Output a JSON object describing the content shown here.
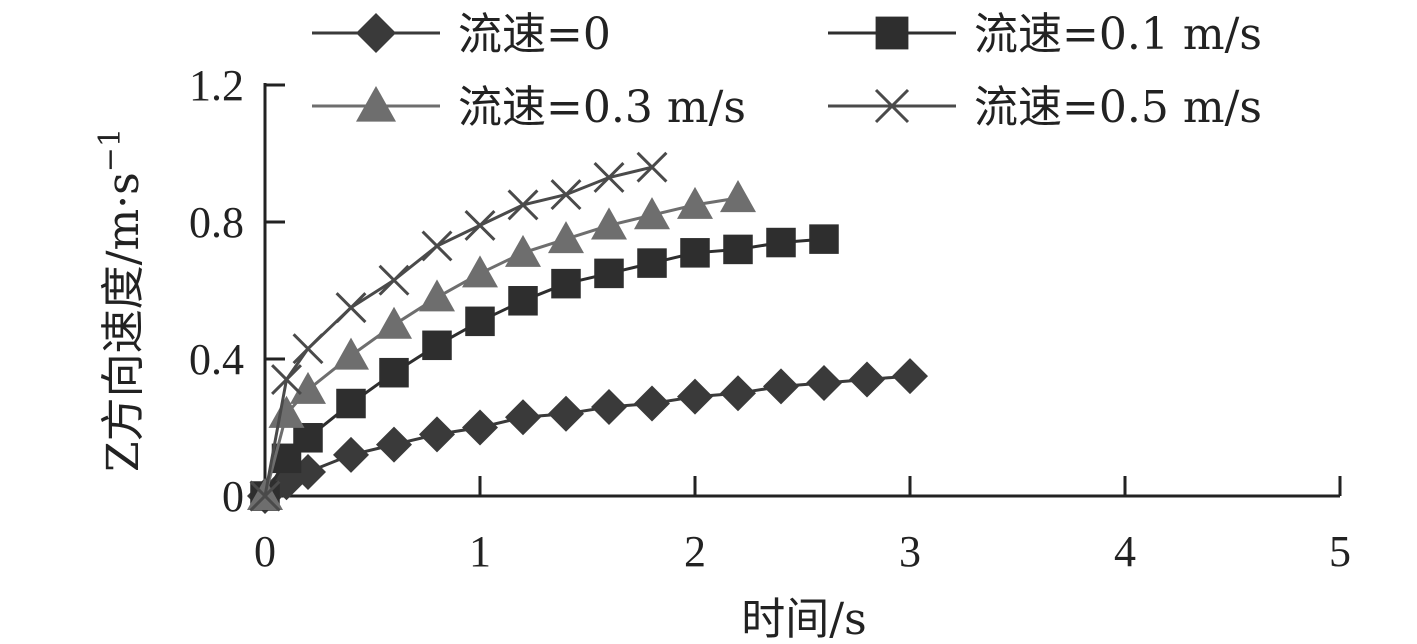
{
  "chart_data": {
    "type": "line",
    "xlabel": "时间/s",
    "ylabel": "Z方向速度/m·s",
    "ylabel_sup": "−1",
    "xlim": [
      0,
      5
    ],
    "ylim": [
      0,
      1.2
    ],
    "x_ticks": [
      0,
      1,
      2,
      3,
      4,
      5
    ],
    "x_tick_labels": [
      "0",
      "1",
      "2",
      "3",
      "4",
      "5"
    ],
    "y_ticks": [
      0,
      0.4,
      0.8,
      1.2
    ],
    "y_tick_labels": [
      "0",
      "0.4",
      "0.8",
      "1.2"
    ],
    "grid": false,
    "legend_position": "top",
    "series": [
      {
        "name": "流速=0",
        "marker": "diamond",
        "color": "#3a3a3a",
        "x": [
          0,
          0.1,
          0.2,
          0.4,
          0.6,
          0.8,
          1.0,
          1.2,
          1.4,
          1.6,
          1.8,
          2.0,
          2.2,
          2.4,
          2.6,
          2.8,
          3.0
        ],
        "y": [
          0,
          0.04,
          0.07,
          0.12,
          0.15,
          0.18,
          0.2,
          0.23,
          0.24,
          0.26,
          0.27,
          0.29,
          0.3,
          0.32,
          0.33,
          0.34,
          0.35
        ]
      },
      {
        "name": "流速=0.1 m/s",
        "marker": "square",
        "color": "#2e2e2e",
        "x": [
          0,
          0.1,
          0.2,
          0.4,
          0.6,
          0.8,
          1.0,
          1.2,
          1.4,
          1.6,
          1.8,
          2.0,
          2.2,
          2.4,
          2.6
        ],
        "y": [
          0,
          0.11,
          0.17,
          0.27,
          0.36,
          0.44,
          0.51,
          0.57,
          0.62,
          0.65,
          0.68,
          0.71,
          0.72,
          0.74,
          0.75
        ]
      },
      {
        "name": "流速=0.3 m/s",
        "marker": "triangle",
        "color": "#6e6e6e",
        "x": [
          0,
          0.1,
          0.2,
          0.4,
          0.6,
          0.8,
          1.0,
          1.2,
          1.4,
          1.6,
          1.8,
          2.0,
          2.2
        ],
        "y": [
          0,
          0.24,
          0.31,
          0.41,
          0.5,
          0.58,
          0.65,
          0.71,
          0.75,
          0.79,
          0.82,
          0.85,
          0.87
        ]
      },
      {
        "name": "流速=0.5 m/s",
        "marker": "x",
        "color": "#4a4a4a",
        "x": [
          0,
          0.1,
          0.2,
          0.4,
          0.6,
          0.8,
          1.0,
          1.2,
          1.4,
          1.6,
          1.8
        ],
        "y": [
          0,
          0.34,
          0.43,
          0.55,
          0.63,
          0.73,
          0.79,
          0.85,
          0.88,
          0.93,
          0.96
        ]
      }
    ]
  }
}
